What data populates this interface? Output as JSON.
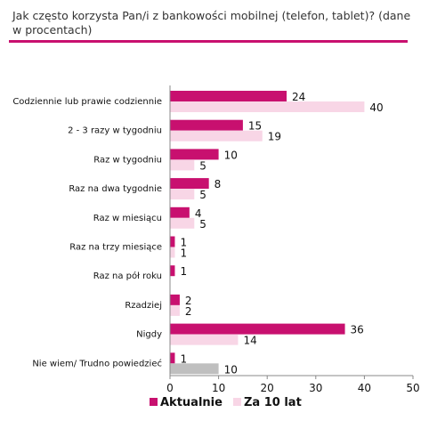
{
  "chart_data": {
    "type": "bar",
    "orientation": "horizontal",
    "title": "Jak często korzysta Pan/i z bankowości mobilnej (telefon, tablet)? (dane w procentach)",
    "categories": [
      "Codziennie lub prawie codziennie",
      "2 - 3 razy w tygodniu",
      "Raz w tygodniu",
      "Raz na dwa tygodnie",
      "Raz w miesiącu",
      "Raz na trzy miesiące",
      "Raz na pół roku",
      "Rzadziej",
      "Nigdy",
      "Nie wiem/ Trudno powiedzieć"
    ],
    "series": [
      {
        "name": "Aktualnie",
        "color": "#c8106f",
        "values": [
          24,
          15,
          10,
          8,
          4,
          1,
          1,
          2,
          36,
          1
        ]
      },
      {
        "name": "Za 10 lat",
        "color": "#f8d6e6",
        "alt_color": "#bfbfbf",
        "values": [
          40,
          19,
          5,
          5,
          5,
          1,
          null,
          2,
          14,
          10
        ]
      }
    ],
    "xlim": [
      0,
      50
    ],
    "xticks": [
      0,
      10,
      20,
      30,
      40,
      50
    ],
    "legend": "bottom",
    "grid": false
  }
}
